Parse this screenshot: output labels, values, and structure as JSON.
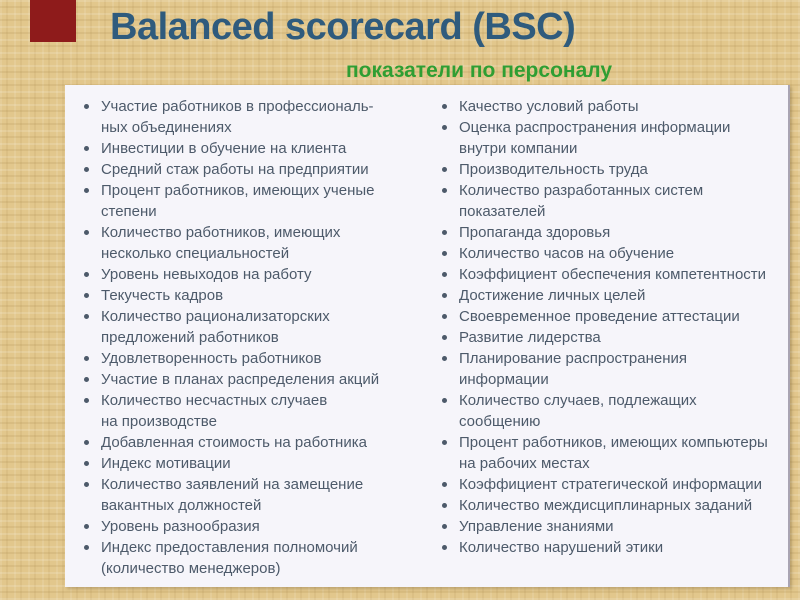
{
  "slide": {
    "title": "Balanced scorecard (BSC)",
    "subtitle": "показатели по персоналу",
    "colors": {
      "background": "#e2c78c",
      "accent_rect": "#8e1b1b",
      "title": "#2f5b7d",
      "subtitle": "#2f9e33",
      "panel_bg": "#f6f5fa",
      "body_text": "#4d5a6a"
    },
    "panel": {
      "left_column": [
        "Участие работников в профессиональ-\nных объединениях",
        "Инвестиции в обучение на клиента",
        "Средний стаж работы на предприятии",
        "Процент работников, имеющих ученые\nстепени",
        "Количество работников, имеющих\nнесколько специальностей",
        "Уровень невыходов на работу",
        "Текучесть кадров",
        "Количество рационализаторских\nпредложений работников",
        "Удовлетворенность работников",
        "Участие в планах распределения акций",
        "Количество несчастных случаев\nна производстве",
        "Добавленная стоимость на работника",
        "Индекс мотивации",
        "Количество заявлений на замещение\nвакантных должностей",
        "Уровень разнообразия",
        "Индекс предоставления полномочий\n(количество менеджеров)"
      ],
      "right_column": [
        "Качество условий работы",
        "Оценка распространения информации\nвнутри компании",
        "Производительность труда",
        "Количество разработанных систем\nпоказателей",
        "Пропаганда здоровья",
        "Количество часов на обучение",
        "Коэффициент обеспечения компетентности",
        "Достижение личных целей",
        "Своевременное проведение аттестации",
        "Развитие лидерства",
        "Планирование распространения\nинформации",
        "Количество случаев, подлежащих\nсообщению",
        "Процент работников, имеющих компьютеры\nна рабочих местах",
        "Коэффициент стратегической информации",
        "Количество междисциплинарных заданий",
        "Управление знаниями",
        "Количество нарушений этики"
      ]
    }
  }
}
